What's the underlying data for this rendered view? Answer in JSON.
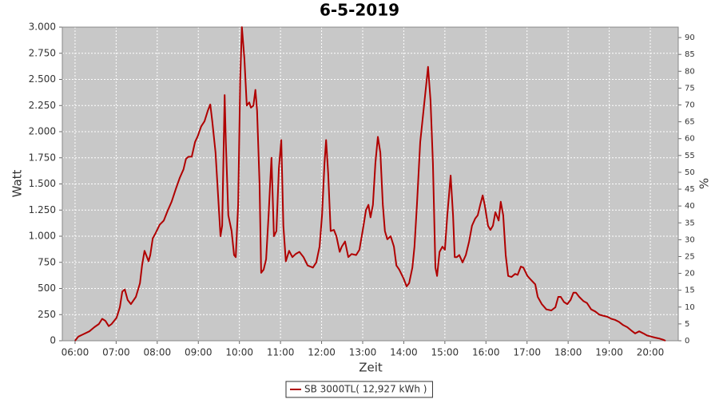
{
  "chart_data": {
    "type": "line",
    "title": "6-5-2019",
    "x_label": "Zeit",
    "y_label": "Watt",
    "y2_label": "%",
    "xlim": [
      5.69,
      20.68
    ],
    "xticks": [
      {
        "value": 6,
        "label": "06:00"
      },
      {
        "value": 7,
        "label": "07:00"
      },
      {
        "value": 8,
        "label": "08:00"
      },
      {
        "value": 9,
        "label": "09:00"
      },
      {
        "value": 10,
        "label": "10:00"
      },
      {
        "value": 11,
        "label": "11:00"
      },
      {
        "value": 12,
        "label": "12:00"
      },
      {
        "value": 13,
        "label": "13:00"
      },
      {
        "value": 14,
        "label": "14:00"
      },
      {
        "value": 15,
        "label": "15:00"
      },
      {
        "value": 16,
        "label": "16:00"
      },
      {
        "value": 17,
        "label": "17:00"
      },
      {
        "value": 18,
        "label": "18:00"
      },
      {
        "value": 19,
        "label": "19:00"
      },
      {
        "value": 20,
        "label": "20:00"
      }
    ],
    "ylim": [
      0,
      3000
    ],
    "yticks": [
      0,
      250,
      500,
      750,
      {
        "value": 1000,
        "label": "1.000"
      },
      {
        "value": 1250,
        "label": "1.250"
      },
      {
        "value": 1500,
        "label": "1.500"
      },
      {
        "value": 1750,
        "label": "1.750"
      },
      {
        "value": 2000,
        "label": "2.000"
      },
      {
        "value": 2250,
        "label": "2.250"
      },
      {
        "value": 2500,
        "label": "2.500"
      },
      {
        "value": 2750,
        "label": "2.750"
      },
      {
        "value": 3000,
        "label": "3.000"
      }
    ],
    "y2lim": [
      0,
      93.1
    ],
    "y2ticks": [
      0,
      5,
      10,
      15,
      20,
      25,
      30,
      35,
      40,
      45,
      50,
      55,
      60,
      65,
      70,
      75,
      80,
      85,
      90
    ],
    "grid": true,
    "legend": "bottom",
    "x": [
      6.0,
      6.08,
      6.19,
      6.35,
      6.47,
      6.58,
      6.66,
      6.74,
      6.82,
      6.89,
      7.01,
      7.09,
      7.15,
      7.21,
      7.28,
      7.36,
      7.48,
      7.58,
      7.63,
      7.69,
      7.75,
      7.79,
      7.83,
      7.89,
      7.96,
      8.06,
      8.16,
      8.26,
      8.35,
      8.45,
      8.55,
      8.64,
      8.7,
      8.76,
      8.84,
      8.92,
      8.99,
      9.07,
      9.15,
      9.23,
      9.29,
      9.34,
      9.42,
      9.48,
      9.54,
      9.58,
      9.64,
      9.67,
      9.73,
      9.81,
      9.87,
      9.91,
      9.97,
      10.02,
      10.06,
      10.12,
      10.18,
      10.24,
      10.28,
      10.34,
      10.39,
      10.43,
      10.49,
      10.53,
      10.59,
      10.65,
      10.71,
      10.78,
      10.84,
      10.9,
      10.96,
      11.02,
      11.07,
      11.13,
      11.21,
      11.29,
      11.37,
      11.46,
      11.56,
      11.66,
      11.79,
      11.87,
      11.95,
      12.01,
      12.07,
      12.11,
      12.16,
      12.22,
      12.3,
      12.36,
      12.44,
      12.49,
      12.57,
      12.65,
      12.73,
      12.84,
      12.92,
      13.02,
      13.08,
      13.14,
      13.19,
      13.25,
      13.31,
      13.37,
      13.43,
      13.49,
      13.54,
      13.6,
      13.68,
      13.76,
      13.82,
      13.89,
      13.99,
      14.07,
      14.13,
      14.21,
      14.26,
      14.32,
      14.4,
      14.48,
      14.56,
      14.59,
      14.65,
      14.71,
      14.77,
      14.81,
      14.87,
      14.94,
      15.0,
      15.06,
      15.14,
      15.2,
      15.24,
      15.29,
      15.35,
      15.43,
      15.51,
      15.59,
      15.66,
      15.74,
      15.8,
      15.86,
      15.92,
      15.97,
      16.05,
      16.11,
      16.17,
      16.23,
      16.31,
      16.36,
      16.42,
      16.48,
      16.54,
      16.62,
      16.71,
      16.77,
      16.85,
      16.91,
      17.01,
      17.1,
      17.2,
      17.26,
      17.36,
      17.47,
      17.59,
      17.69,
      17.76,
      17.82,
      17.9,
      17.98,
      18.06,
      18.13,
      18.19,
      18.27,
      18.37,
      18.46,
      18.56,
      18.66,
      18.76,
      18.85,
      18.95,
      19.05,
      19.14,
      19.24,
      19.34,
      19.44,
      19.53,
      19.63,
      19.73,
      19.83,
      19.92,
      20.02,
      20.12,
      20.23,
      20.31,
      20.37
    ],
    "series": [
      {
        "name": "SB 3000TL( 12,927 kWh )",
        "color": "#b00000",
        "values": [
          0,
          40,
          60,
          90,
          130,
          160,
          210,
          190,
          140,
          160,
          220,
          320,
          470,
          490,
          390,
          350,
          420,
          550,
          720,
          860,
          800,
          760,
          820,
          980,
          1030,
          1110,
          1150,
          1250,
          1330,
          1450,
          1560,
          1640,
          1740,
          1760,
          1760,
          1900,
          1960,
          2050,
          2100,
          2200,
          2260,
          2100,
          1800,
          1400,
          1000,
          1100,
          2350,
          1900,
          1200,
          1050,
          820,
          800,
          1300,
          2500,
          3000,
          2700,
          2250,
          2280,
          2230,
          2250,
          2400,
          2200,
          1500,
          650,
          680,
          780,
          1200,
          1750,
          1000,
          1050,
          1650,
          1920,
          1100,
          760,
          860,
          800,
          830,
          850,
          800,
          720,
          700,
          750,
          900,
          1200,
          1700,
          1920,
          1600,
          1050,
          1060,
          1000,
          850,
          900,
          950,
          800,
          830,
          820,
          870,
          1100,
          1250,
          1300,
          1180,
          1300,
          1700,
          1950,
          1800,
          1300,
          1050,
          970,
          1000,
          900,
          720,
          680,
          600,
          520,
          550,
          700,
          900,
          1300,
          1900,
          2200,
          2500,
          2620,
          2300,
          1700,
          700,
          620,
          850,
          900,
          870,
          1200,
          1580,
          1200,
          800,
          800,
          820,
          750,
          820,
          950,
          1100,
          1170,
          1200,
          1300,
          1390,
          1300,
          1100,
          1060,
          1100,
          1230,
          1150,
          1330,
          1200,
          820,
          620,
          610,
          640,
          630,
          710,
          700,
          620,
          580,
          540,
          420,
          350,
          300,
          290,
          320,
          420,
          420,
          370,
          350,
          390,
          460,
          460,
          420,
          380,
          360,
          300,
          280,
          250,
          240,
          230,
          210,
          200,
          180,
          150,
          130,
          100,
          70,
          90,
          70,
          50,
          40,
          30,
          20,
          10,
          0
        ]
      }
    ]
  }
}
